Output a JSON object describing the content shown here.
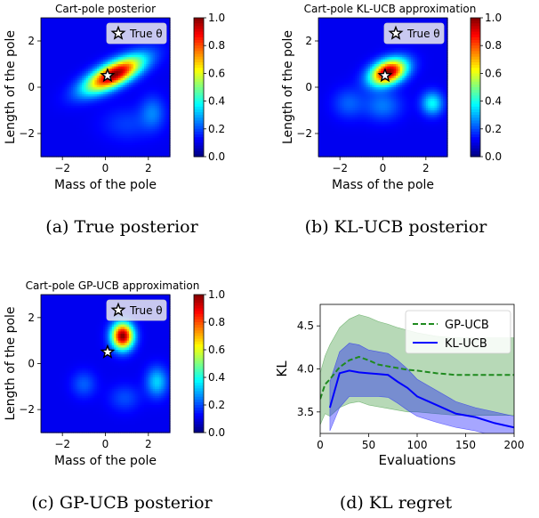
{
  "panels": [
    {
      "title": "Cart-pole posterior",
      "caption": "(a) True posterior",
      "xlabel": "Mass of the pole",
      "ylabel": "Length of the pole",
      "legend": "True θ"
    },
    {
      "title": "Cart-pole KL-UCB approximation",
      "caption": "(b) KL-UCB posterior",
      "xlabel": "Mass of the pole",
      "ylabel": "Length of the pole",
      "legend": "True θ"
    },
    {
      "title": "Cart-pole GP-UCB approximation",
      "caption": "(c) GP-UCB posterior",
      "xlabel": "Mass of the pole",
      "ylabel": "Length of the pole",
      "legend": "True θ"
    },
    {
      "title": "",
      "caption": "(d) KL regret",
      "xlabel": "Evaluations",
      "ylabel": "KL"
    }
  ],
  "chart_data": [
    {
      "type": "heatmap",
      "title": "Cart-pole posterior",
      "xlabel": "Mass of the pole",
      "ylabel": "Length of the pole",
      "xlim": [
        -3,
        3
      ],
      "ylim": [
        -3,
        3
      ],
      "xticks": [
        "−2",
        "0",
        "2"
      ],
      "yticks": [
        "−2",
        "0",
        "2"
      ],
      "colorbar": {
        "min": 0.0,
        "max": 1.0,
        "ticks": [
          "0.0",
          "0.2",
          "0.4",
          "0.6",
          "0.8",
          "1.0"
        ]
      },
      "true_theta": {
        "x": 0.1,
        "y": 0.5
      },
      "modes": [
        {
          "x": 0.4,
          "y": 0.55,
          "amplitude": 1.0,
          "sx": 1.0,
          "sy": 0.35,
          "rotation_deg": 25
        },
        {
          "x": 2.2,
          "y": -1.1,
          "amplitude": 0.15,
          "sx": 0.4,
          "sy": 0.5,
          "rotation_deg": 0
        },
        {
          "x": 1.0,
          "y": -1.6,
          "amplitude": 0.08,
          "sx": 0.8,
          "sy": 0.5,
          "rotation_deg": 0
        }
      ]
    },
    {
      "type": "heatmap",
      "title": "Cart-pole KL-UCB approximation",
      "xlabel": "Mass of the pole",
      "ylabel": "Length of the pole",
      "xlim": [
        -3,
        3
      ],
      "ylim": [
        -3,
        3
      ],
      "xticks": [
        "−2",
        "0",
        "2"
      ],
      "yticks": [
        "−2",
        "0",
        "2"
      ],
      "colorbar": {
        "min": 0.0,
        "max": 1.0,
        "ticks": [
          "0.0",
          "0.2",
          "0.4",
          "0.6",
          "0.8",
          "1.0"
        ]
      },
      "true_theta": {
        "x": 0.1,
        "y": 0.5
      },
      "modes": [
        {
          "x": 0.25,
          "y": 0.65,
          "amplitude": 1.0,
          "sx": 0.6,
          "sy": 0.35,
          "rotation_deg": 20
        },
        {
          "x": 2.3,
          "y": -0.7,
          "amplitude": 0.3,
          "sx": 0.35,
          "sy": 0.35,
          "rotation_deg": 0
        },
        {
          "x": -1.6,
          "y": -0.7,
          "amplitude": 0.12,
          "sx": 0.5,
          "sy": 0.45,
          "rotation_deg": 0
        },
        {
          "x": 0.0,
          "y": -0.8,
          "amplitude": 0.15,
          "sx": 0.6,
          "sy": 0.45,
          "rotation_deg": 0
        }
      ]
    },
    {
      "type": "heatmap",
      "title": "Cart-pole GP-UCB approximation",
      "xlabel": "Mass of the pole",
      "ylabel": "Length of the pole",
      "xlim": [
        -3,
        3
      ],
      "ylim": [
        -3,
        3
      ],
      "xticks": [
        "−2",
        "0",
        "2"
      ],
      "yticks": [
        "−2",
        "0",
        "2"
      ],
      "colorbar": {
        "min": 0.0,
        "max": 1.0,
        "ticks": [
          "0.0",
          "0.2",
          "0.4",
          "0.6",
          "0.8",
          "1.0"
        ]
      },
      "true_theta": {
        "x": 0.1,
        "y": 0.5
      },
      "modes": [
        {
          "x": 0.8,
          "y": 1.2,
          "amplitude": 1.0,
          "sx": 0.35,
          "sy": 0.4,
          "rotation_deg": 0
        },
        {
          "x": 2.4,
          "y": -0.8,
          "amplitude": 0.25,
          "sx": 0.35,
          "sy": 0.45,
          "rotation_deg": 0
        },
        {
          "x": -1.0,
          "y": -0.9,
          "amplitude": 0.12,
          "sx": 0.4,
          "sy": 0.4,
          "rotation_deg": 0
        },
        {
          "x": 0.9,
          "y": -1.5,
          "amplitude": 0.1,
          "sx": 0.5,
          "sy": 0.4,
          "rotation_deg": 0
        }
      ]
    },
    {
      "type": "line",
      "title": "",
      "xlabel": "Evaluations",
      "ylabel": "KL",
      "xlim": [
        0,
        200
      ],
      "ylim": [
        3.25,
        4.75
      ],
      "xticks": [
        0,
        50,
        100,
        150,
        200
      ],
      "yticks": [
        3.5,
        4.0,
        4.5
      ],
      "ytick_labels": [
        "3.5",
        "4.0",
        "4.5"
      ],
      "legend_position": "top-right",
      "series": [
        {
          "name": "GP-UCB",
          "color": "#1f8a1f",
          "dash": true,
          "x": [
            0,
            5,
            10,
            20,
            30,
            40,
            50,
            60,
            70,
            80,
            90,
            100,
            120,
            140,
            160,
            180,
            200
          ],
          "mean": [
            3.65,
            3.82,
            3.88,
            4.02,
            4.1,
            4.14,
            4.1,
            4.05,
            4.03,
            4.01,
            3.99,
            3.98,
            3.95,
            3.93,
            3.93,
            3.93,
            3.93
          ],
          "upper": [
            3.95,
            4.15,
            4.28,
            4.48,
            4.58,
            4.63,
            4.6,
            4.55,
            4.52,
            4.48,
            4.45,
            4.42,
            4.38,
            4.36,
            4.36,
            4.36,
            4.36
          ],
          "lower": [
            3.35,
            3.48,
            3.45,
            3.55,
            3.6,
            3.62,
            3.58,
            3.56,
            3.54,
            3.52,
            3.5,
            3.5,
            3.48,
            3.46,
            3.46,
            3.46,
            3.46
          ]
        },
        {
          "name": "KL-UCB",
          "color": "#0000ff",
          "dash": false,
          "x": [
            10,
            20,
            30,
            40,
            50,
            60,
            70,
            80,
            90,
            100,
            120,
            140,
            160,
            180,
            200
          ],
          "mean": [
            3.55,
            3.95,
            3.98,
            3.96,
            3.95,
            3.94,
            3.93,
            3.85,
            3.78,
            3.68,
            3.58,
            3.48,
            3.44,
            3.37,
            3.32
          ],
          "upper": [
            3.85,
            4.2,
            4.3,
            4.28,
            4.22,
            4.2,
            4.18,
            4.1,
            4.0,
            3.88,
            3.75,
            3.62,
            3.55,
            3.5,
            3.45
          ],
          "lower": [
            3.28,
            3.55,
            3.68,
            3.68,
            3.68,
            3.68,
            3.67,
            3.6,
            3.52,
            3.45,
            3.38,
            3.32,
            3.28,
            3.22,
            3.18
          ]
        }
      ]
    }
  ]
}
